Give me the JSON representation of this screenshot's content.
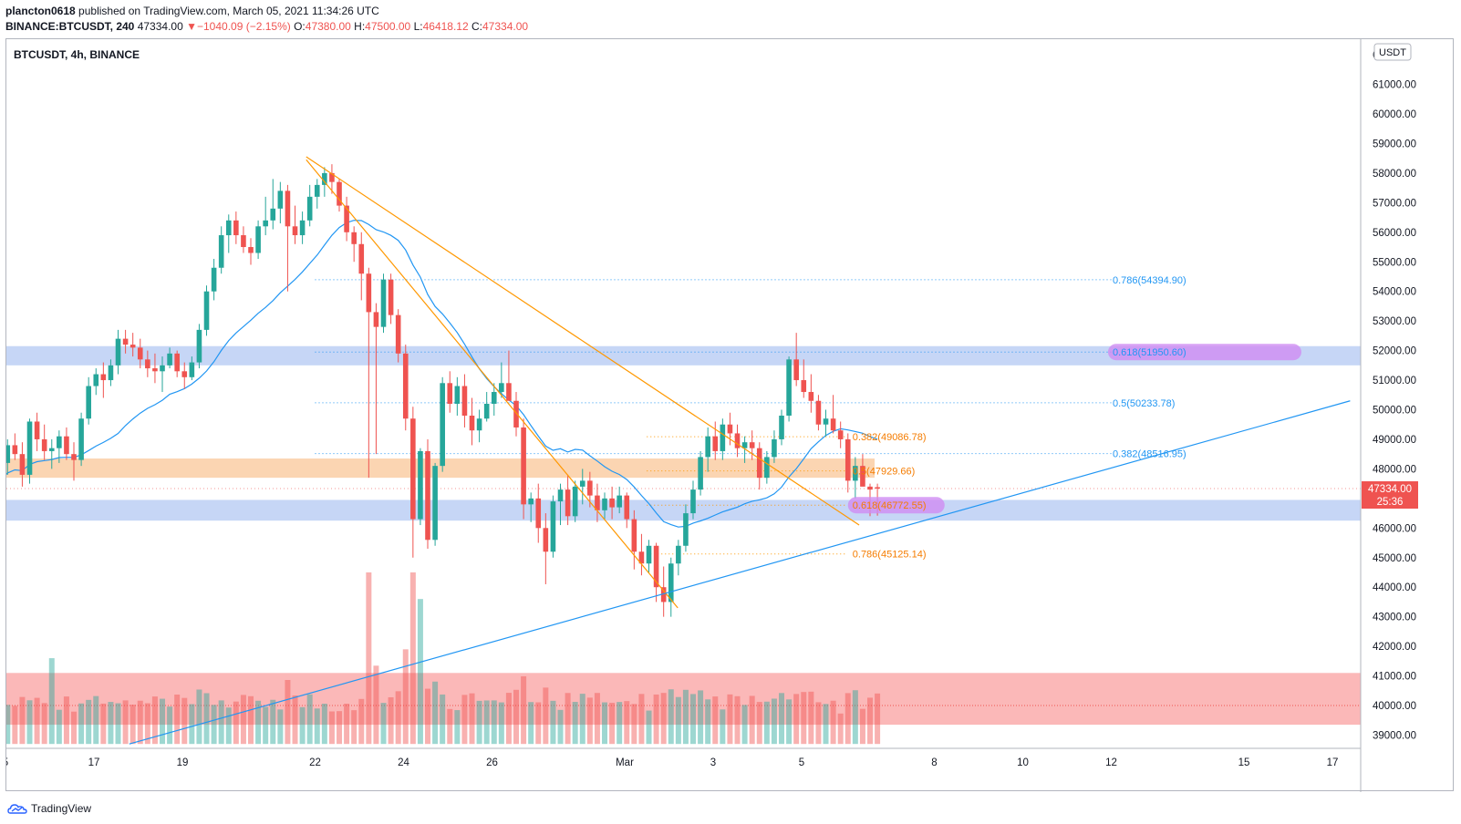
{
  "header": {
    "author": "plancton0618",
    "published_text": "published on TradingView.com, March 05, 2021 11:34:26 UTC",
    "symbol_line": "BINANCE:BTCUSDT, 240",
    "last_price": "47334.00",
    "change_arrow": "▼",
    "change": "−1040.09 (−2.15%)",
    "o_label": "O:",
    "o_value": "47380.00",
    "h_label": "H:",
    "h_value": "47500.00",
    "l_label": "L:",
    "l_value": "46418.12",
    "c_label": "C:",
    "c_value": "47334.00"
  },
  "chart_title": "BTCUSDT, 4h, BINANCE",
  "currency_badge": "USDT",
  "price_badge": {
    "value": "47334.00",
    "countdown": "25:36"
  },
  "footer": {
    "brand": "TradingView"
  },
  "colors": {
    "up": "#26a69a",
    "down": "#ef5350",
    "ma": "#2196f3",
    "orange": "#ff9800",
    "blue_zone": "#c3d4f5",
    "orange_zone": "#fbd3ae",
    "volume_zone": "#fbb4b4",
    "purple": "#d08cf2"
  },
  "chart_data": {
    "type": "candlestick",
    "ylim": [
      38500,
      62500
    ],
    "y_ticks": [
      39000,
      40000,
      41000,
      42000,
      43000,
      44000,
      45000,
      46000,
      47000,
      48000,
      49000,
      50000,
      51000,
      52000,
      53000,
      54000,
      55000,
      56000,
      57000,
      58000,
      59000,
      60000,
      61000
    ],
    "y_tick_labels": [
      "39000.00",
      "40000.00",
      "41000.00",
      "42000.00",
      "43000.00",
      "44000.00",
      "45000.00",
      "46000.00",
      "47000.00",
      "48000.00",
      "49000.00",
      "50000.00",
      "51000.00",
      "52000.00",
      "53000.00",
      "54000.00",
      "55000.00",
      "56000.00",
      "57000.00",
      "58000.00",
      "59000.00",
      "60000.00",
      "61000.00"
    ],
    "top_tick_partial": "6",
    "x_ticks": [
      {
        "d": -1,
        "label": "5"
      },
      {
        "d": 1,
        "label": "17"
      },
      {
        "d": 3,
        "label": "19"
      },
      {
        "d": 6,
        "label": "22"
      },
      {
        "d": 8,
        "label": "24"
      },
      {
        "d": 10,
        "label": "26"
      },
      {
        "d": 13,
        "label": "Mar"
      },
      {
        "d": 15,
        "label": "3"
      },
      {
        "d": 17,
        "label": "5"
      },
      {
        "d": 20,
        "label": "8"
      },
      {
        "d": 22,
        "label": "10"
      },
      {
        "d": 24,
        "label": "12"
      },
      {
        "d": 27,
        "label": "15"
      },
      {
        "d": 29,
        "label": "17"
      }
    ],
    "x_axis_note": "x in days after Feb 16, 2021 00:00 UTC",
    "candles": [
      [
        47100,
        47500,
        46300,
        46900
      ],
      [
        46900,
        47800,
        46600,
        47600
      ],
      [
        47600,
        48000,
        47300,
        47800
      ],
      [
        47800,
        48500,
        47500,
        48200
      ],
      [
        48200,
        49000,
        47800,
        48800
      ],
      [
        48800,
        49200,
        48300,
        48500
      ],
      [
        48500,
        48900,
        47400,
        47800
      ],
      [
        47800,
        49700,
        47500,
        49600
      ],
      [
        49600,
        49900,
        48600,
        49000
      ],
      [
        49000,
        49500,
        48300,
        48600
      ],
      [
        48600,
        49000,
        48000,
        48700
      ],
      [
        48700,
        49300,
        48200,
        49100
      ],
      [
        49100,
        49400,
        48300,
        48500
      ],
      [
        48500,
        48900,
        47600,
        48300
      ],
      [
        48300,
        49900,
        48100,
        49700
      ],
      [
        49700,
        51100,
        49500,
        50800
      ],
      [
        50800,
        51400,
        50500,
        51200
      ],
      [
        51200,
        51600,
        50400,
        51000
      ],
      [
        51000,
        51700,
        50800,
        51500
      ],
      [
        51500,
        52700,
        51200,
        52400
      ],
      [
        52400,
        52700,
        51900,
        52200
      ],
      [
        52200,
        52600,
        51800,
        52100
      ],
      [
        52100,
        52400,
        51400,
        51700
      ],
      [
        51700,
        52000,
        51100,
        51400
      ],
      [
        51400,
        51900,
        50900,
        51300
      ],
      [
        51300,
        51800,
        50600,
        51500
      ],
      [
        51500,
        52100,
        51400,
        51900
      ],
      [
        51900,
        52000,
        51100,
        51300
      ],
      [
        51300,
        51600,
        50700,
        51100
      ],
      [
        51100,
        51800,
        51000,
        51600
      ],
      [
        51600,
        52900,
        51400,
        52700
      ],
      [
        52700,
        54200,
        52500,
        54000
      ],
      [
        54000,
        55100,
        53700,
        54800
      ],
      [
        54800,
        56200,
        54600,
        55900
      ],
      [
        55900,
        56600,
        55300,
        56400
      ],
      [
        56400,
        56700,
        55600,
        55900
      ],
      [
        55900,
        56200,
        55300,
        55500
      ],
      [
        55500,
        55800,
        54900,
        55300
      ],
      [
        55300,
        56400,
        55100,
        56200
      ],
      [
        56200,
        57200,
        55900,
        56400
      ],
      [
        56400,
        57800,
        56100,
        56800
      ],
      [
        56800,
        57700,
        56300,
        57400
      ],
      [
        57400,
        57600,
        54000,
        56200
      ],
      [
        56200,
        56900,
        55600,
        55900
      ],
      [
        55900,
        56700,
        55600,
        56400
      ],
      [
        56400,
        57600,
        56200,
        57200
      ],
      [
        57200,
        57800,
        56800,
        57600
      ],
      [
        57600,
        58200,
        57200,
        58000
      ],
      [
        58000,
        58300,
        57300,
        57700
      ],
      [
        57700,
        57800,
        56700,
        56900
      ],
      [
        56900,
        57200,
        55700,
        56000
      ],
      [
        56000,
        56200,
        55000,
        55600
      ],
      [
        55600,
        56000,
        53700,
        54600
      ],
      [
        54600,
        54800,
        47700,
        53300
      ],
      [
        53300,
        53600,
        48500,
        52800
      ],
      [
        52800,
        54600,
        52600,
        54400
      ],
      [
        54400,
        54600,
        52900,
        53200
      ],
      [
        53200,
        53400,
        51600,
        51900
      ],
      [
        51900,
        52200,
        49300,
        49700
      ],
      [
        49700,
        50100,
        45000,
        46300
      ],
      [
        46300,
        48700,
        46100,
        48600
      ],
      [
        48600,
        49000,
        45300,
        45600
      ],
      [
        45600,
        48200,
        45400,
        48100
      ],
      [
        48100,
        51100,
        47900,
        50900
      ],
      [
        50900,
        51300,
        49900,
        50200
      ],
      [
        50200,
        51100,
        49800,
        50800
      ],
      [
        50800,
        51200,
        49400,
        49800
      ],
      [
        49800,
        50400,
        48800,
        49300
      ],
      [
        49300,
        50000,
        48900,
        49700
      ],
      [
        49700,
        50600,
        49600,
        50200
      ],
      [
        50200,
        50900,
        49800,
        50600
      ],
      [
        50600,
        51600,
        50400,
        50900
      ],
      [
        50900,
        52000,
        50500,
        50300
      ],
      [
        50300,
        50600,
        49100,
        49400
      ],
      [
        49400,
        49700,
        46300,
        46800
      ],
      [
        46800,
        47200,
        46200,
        47000
      ],
      [
        47000,
        47500,
        45500,
        46000
      ],
      [
        46000,
        46500,
        44100,
        45200
      ],
      [
        45200,
        47100,
        45000,
        46900
      ],
      [
        46900,
        47500,
        46100,
        47300
      ],
      [
        47300,
        47800,
        46100,
        46400
      ],
      [
        46400,
        47600,
        46200,
        47400
      ],
      [
        47400,
        48000,
        46800,
        47600
      ],
      [
        47600,
        47900,
        46700,
        47100
      ],
      [
        47100,
        47500,
        46200,
        46600
      ],
      [
        46600,
        47200,
        46300,
        47000
      ],
      [
        47000,
        47400,
        46300,
        46700
      ],
      [
        46700,
        47400,
        46500,
        47100
      ],
      [
        47100,
        47200,
        46000,
        46300
      ],
      [
        46300,
        46600,
        44600,
        45200
      ],
      [
        45200,
        45800,
        44400,
        44800
      ],
      [
        44800,
        45600,
        44500,
        45400
      ],
      [
        45400,
        45500,
        43500,
        44000
      ],
      [
        44000,
        44700,
        43000,
        43500
      ],
      [
        43500,
        45000,
        43000,
        44800
      ],
      [
        44800,
        45600,
        44400,
        45400
      ],
      [
        45400,
        46800,
        45200,
        46500
      ],
      [
        46500,
        47600,
        46300,
        47300
      ],
      [
        47300,
        48600,
        47100,
        48400
      ],
      [
        48400,
        49400,
        47900,
        49100
      ],
      [
        49100,
        49600,
        48300,
        48600
      ],
      [
        48600,
        49700,
        48300,
        49500
      ],
      [
        49500,
        49900,
        48800,
        49200
      ],
      [
        49200,
        49500,
        48400,
        48700
      ],
      [
        48700,
        49100,
        48200,
        48900
      ],
      [
        48900,
        49300,
        48300,
        48700
      ],
      [
        48700,
        48900,
        47300,
        47700
      ],
      [
        47700,
        48600,
        47500,
        48400
      ],
      [
        48400,
        49300,
        48200,
        49000
      ],
      [
        49000,
        50000,
        48800,
        49800
      ],
      [
        49800,
        51800,
        49600,
        51700
      ],
      [
        51700,
        52600,
        50800,
        51000
      ],
      [
        51000,
        51700,
        50400,
        50600
      ],
      [
        50600,
        51200,
        49900,
        50300
      ],
      [
        50300,
        50500,
        49300,
        49500
      ],
      [
        49500,
        50000,
        49100,
        49700
      ],
      [
        49700,
        50500,
        49200,
        49300
      ],
      [
        49300,
        49600,
        48700,
        49000
      ],
      [
        49000,
        49200,
        47200,
        47600
      ],
      [
        47600,
        48400,
        47000,
        48100
      ],
      [
        48100,
        48500,
        47500,
        47400
      ],
      [
        47400,
        47500,
        46400,
        47300
      ],
      [
        47380,
        47500,
        46418,
        47334
      ]
    ],
    "volume_axis_range": [
      38500,
      46000
    ],
    "fib_levels": [
      {
        "label": "0.786(54394.90)",
        "value": 54394.9,
        "color": "#2196f3"
      },
      {
        "label": "0.618(51950.60)",
        "value": 51950.6,
        "color": "#2196f3"
      },
      {
        "label": "0.5(50233.78)",
        "value": 50233.78,
        "color": "#2196f3"
      },
      {
        "label": "0.382(48516.95)",
        "value": 48516.95,
        "color": "#2196f3"
      },
      {
        "label": "0.382(49086.78)",
        "value": 49086.78,
        "color": "#ff9800"
      },
      {
        "label": "0.5(47929.66)",
        "value": 47929.66,
        "color": "#ff9800"
      },
      {
        "label": "0.618(46772.55)",
        "value": 46772.55,
        "color": "#ff9800"
      },
      {
        "label": "0.786(45125.14)",
        "value": 45125.14,
        "color": "#ff9800"
      }
    ],
    "zones": [
      {
        "name": "resistance-zone",
        "low": 51500,
        "high": 52150
      },
      {
        "name": "orange-zone",
        "low": 47700,
        "high": 48350
      },
      {
        "name": "support-zone",
        "low": 46250,
        "high": 46950
      },
      {
        "name": "volume-zone",
        "low": 39350,
        "high": 41100
      }
    ],
    "trendlines": [
      {
        "name": "orange-trendline-1",
        "color": "#ff9800",
        "from": {
          "d": 5.8,
          "v": 58550
        },
        "to": {
          "d": 18.3,
          "v": 46100
        }
      },
      {
        "name": "orange-trendline-2",
        "color": "#ff9800",
        "from": {
          "d": 5.8,
          "v": 58450
        },
        "to": {
          "d": 14.2,
          "v": 43300
        }
      },
      {
        "name": "blue-trendline",
        "color": "#2196f3",
        "from": {
          "d": 1.8,
          "v": 38700
        },
        "to": {
          "d": 29.4,
          "v": 50300
        }
      }
    ]
  }
}
